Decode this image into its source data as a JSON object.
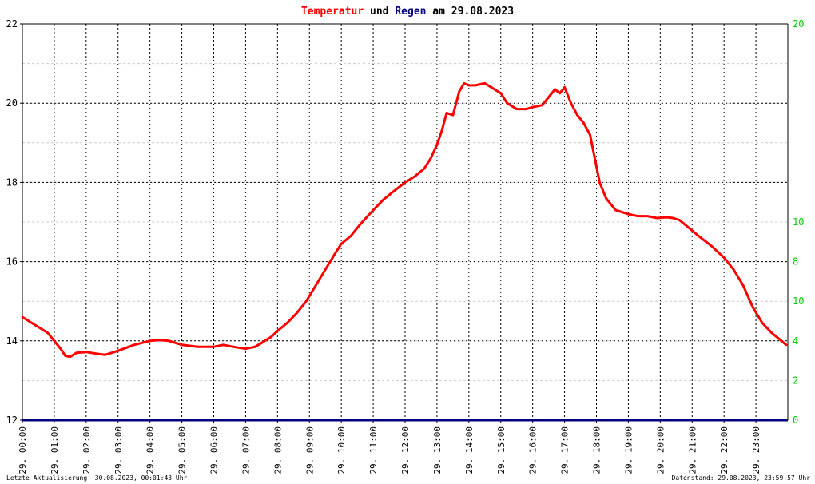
{
  "title": {
    "part1": "Temperatur",
    "part2": " und ",
    "part3": "Regen",
    "part4": " am 29.08.2023",
    "color1": "#ff0000",
    "color3": "#000080"
  },
  "footer": {
    "left": "Letzte Aktualisierung: 30.08.2023, 00:01:43 Uhr",
    "right": "Datenstand: 29.08.2023, 23:59:57 Uhr"
  },
  "chart_data": {
    "type": "line",
    "title": "Temperatur und Regen am 29.08.2023",
    "x_unit": "hours",
    "xlim": [
      0,
      24
    ],
    "ylim": [
      12,
      22
    ],
    "y2lim": [
      0,
      20
    ],
    "grid": true,
    "y_ticks": [
      "12",
      "14",
      "16",
      "18",
      "20",
      "22"
    ],
    "y2_ticks": [
      "0",
      "2",
      "4",
      "6",
      "8",
      "10",
      "12",
      "14",
      "16",
      "18",
      "20"
    ],
    "y2_tick_labels_shown": [
      "0",
      "2",
      "4",
      "8",
      "10",
      "10",
      "20"
    ],
    "x_tick_labels": [
      "29. 00:00",
      "29. 01:00",
      "29. 02:00",
      "29. 03:00",
      "29. 04:00",
      "29. 05:00",
      "29. 06:00",
      "29. 07:00",
      "29. 08:00",
      "29. 09:00",
      "29. 10:00",
      "29. 11:00",
      "29. 12:00",
      "29. 13:00",
      "29. 14:00",
      "29. 15:00",
      "29. 16:00",
      "29. 17:00",
      "29. 18:00",
      "29. 19:00",
      "29. 20:00",
      "29. 21:00",
      "29. 22:00",
      "29. 23:00"
    ],
    "series": [
      {
        "name": "Temperatur",
        "color": "#ff0000",
        "axis": "left",
        "x": [
          0,
          0.2,
          0.4,
          0.6,
          0.8,
          1.0,
          1.2,
          1.35,
          1.5,
          1.7,
          2.0,
          2.3,
          2.6,
          3.0,
          3.5,
          4.0,
          4.3,
          4.6,
          5.0,
          5.5,
          6.0,
          6.3,
          6.6,
          7.0,
          7.3,
          7.5,
          7.8,
          8.0,
          8.3,
          8.6,
          8.9,
          9.2,
          9.5,
          9.8,
          10.0,
          10.3,
          10.6,
          11.0,
          11.3,
          11.6,
          12.0,
          12.3,
          12.6,
          12.8,
          13.0,
          13.15,
          13.3,
          13.5,
          13.7,
          13.85,
          14.0,
          14.2,
          14.5,
          14.8,
          15.0,
          15.2,
          15.5,
          15.8,
          16.0,
          16.3,
          16.5,
          16.7,
          16.85,
          17.0,
          17.2,
          17.4,
          17.6,
          17.8,
          17.95,
          18.1,
          18.3,
          18.6,
          19.0,
          19.3,
          19.6,
          19.9,
          20.2,
          20.4,
          20.6,
          20.9,
          21.2,
          21.6,
          22.0,
          22.3,
          22.6,
          22.9,
          23.2,
          23.5,
          23.8,
          23.95
        ],
        "y": [
          14.6,
          14.5,
          14.4,
          14.3,
          14.2,
          14.0,
          13.8,
          13.62,
          13.6,
          13.7,
          13.72,
          13.68,
          13.65,
          13.75,
          13.9,
          14.0,
          14.02,
          14.0,
          13.9,
          13.85,
          13.85,
          13.9,
          13.85,
          13.8,
          13.85,
          13.95,
          14.1,
          14.25,
          14.45,
          14.7,
          15.0,
          15.4,
          15.8,
          16.2,
          16.45,
          16.65,
          16.95,
          17.3,
          17.55,
          17.75,
          18.0,
          18.15,
          18.35,
          18.6,
          18.95,
          19.3,
          19.75,
          19.7,
          20.3,
          20.5,
          20.45,
          20.45,
          20.5,
          20.35,
          20.25,
          20.0,
          19.85,
          19.85,
          19.9,
          19.95,
          20.15,
          20.35,
          20.25,
          20.4,
          20.0,
          19.7,
          19.5,
          19.2,
          18.6,
          18.0,
          17.6,
          17.3,
          17.2,
          17.15,
          17.15,
          17.1,
          17.12,
          17.1,
          17.05,
          16.85,
          16.65,
          16.4,
          16.1,
          15.8,
          15.4,
          14.85,
          14.45,
          14.2,
          14.0,
          13.9
        ]
      },
      {
        "name": "Regen",
        "color": "#000080",
        "axis": "right",
        "x": [
          0,
          24
        ],
        "y": [
          0,
          0
        ]
      }
    ]
  }
}
